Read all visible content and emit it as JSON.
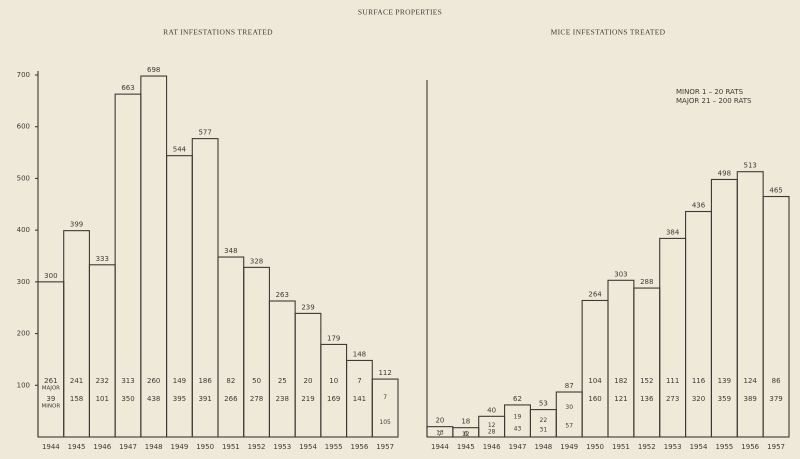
{
  "title": "SURFACE PROPERTIES",
  "legend": [
    "MINOR  1 – 20 RATS",
    "MAJOR 21 – 200 RATS"
  ],
  "chart_data": [
    {
      "type": "bar",
      "title": "RAT INFESTATIONS TREATED",
      "categories": [
        "1944",
        "1945",
        "1946",
        "1947",
        "1948",
        "1949",
        "1950",
        "1951",
        "1952",
        "1953",
        "1954",
        "1955",
        "1956",
        "1957"
      ],
      "values": [
        300,
        399,
        333,
        663,
        698,
        544,
        577,
        348,
        328,
        263,
        239,
        179,
        148,
        112
      ],
      "series": [
        {
          "name": "MAJOR",
          "values": [
            261,
            241,
            232,
            313,
            260,
            149,
            186,
            82,
            50,
            25,
            20,
            10,
            7,
            7
          ]
        },
        {
          "name": "MINOR",
          "values": [
            39,
            158,
            101,
            350,
            438,
            395,
            391,
            266,
            278,
            238,
            219,
            169,
            141,
            105
          ]
        }
      ],
      "ylim": [
        0,
        700
      ],
      "yticks": [
        100,
        200,
        300,
        400,
        500,
        600,
        700
      ],
      "color": "#3c3a36"
    },
    {
      "type": "bar",
      "title": "MICE INFESTATIONS TREATED",
      "categories": [
        "1944",
        "1945",
        "1946",
        "1947",
        "1948",
        "1949",
        "1950",
        "1951",
        "1952",
        "1953",
        "1954",
        "1955",
        "1956",
        "1957"
      ],
      "values": [
        20,
        18,
        40,
        62,
        53,
        87,
        264,
        303,
        288,
        384,
        436,
        498,
        513,
        465
      ],
      "series": [
        {
          "name": "MAJOR",
          "values": [
            13,
            6,
            12,
            19,
            22,
            30,
            104,
            182,
            152,
            111,
            116,
            139,
            124,
            86
          ]
        },
        {
          "name": "MINOR",
          "values": [
            7,
            12,
            28,
            43,
            31,
            57,
            160,
            121,
            136,
            273,
            320,
            359,
            389,
            379
          ]
        }
      ],
      "ylim": [
        0,
        700
      ],
      "color": "#3c3a36"
    }
  ]
}
